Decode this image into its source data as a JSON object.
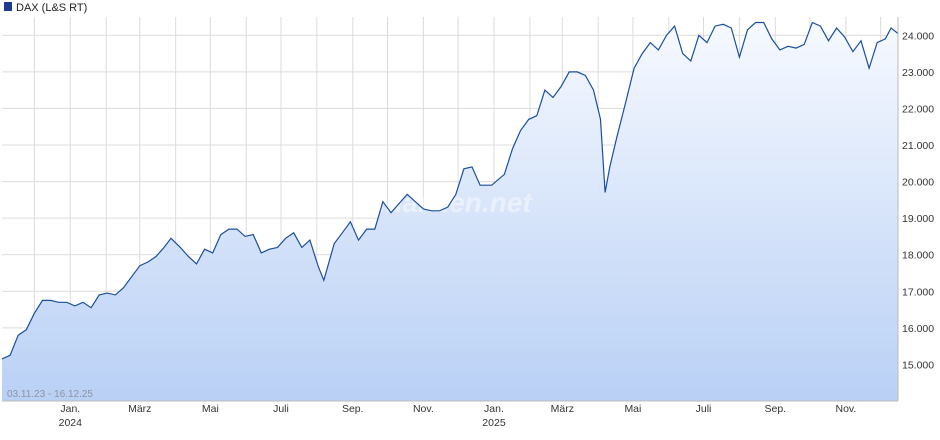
{
  "legend": {
    "label": "DAX (L&S RT)",
    "swatch_color": "#1f3a93"
  },
  "date_range_label": "03.11.23 - 16.12.25",
  "watermark": "finanzen.net",
  "colors": {
    "line": "#1a4fa0",
    "fill_top": "#f6f9ff",
    "fill_bottom": "#b9d0f5",
    "grid": "#dcdcdc",
    "axis_text": "#333333"
  },
  "chart_data": {
    "type": "area",
    "title": "",
    "xlabel": "",
    "ylabel": "",
    "y_axis_position": "right",
    "grid": true,
    "legend_position": "top-left",
    "ylim": [
      14000,
      24500
    ],
    "y_ticks": [
      "15.000",
      "16.000",
      "17.000",
      "18.000",
      "19.000",
      "20.000",
      "21.000",
      "22.000",
      "23.000",
      "24.000"
    ],
    "x_ticks": [
      {
        "month": "Jan.",
        "year": "2024"
      },
      {
        "month": "März",
        "year": ""
      },
      {
        "month": "Mai",
        "year": ""
      },
      {
        "month": "Juli",
        "year": ""
      },
      {
        "month": "Sep.",
        "year": ""
      },
      {
        "month": "Nov.",
        "year": ""
      },
      {
        "month": "Jan.",
        "year": "2025"
      },
      {
        "month": "März",
        "year": ""
      },
      {
        "month": "Mai",
        "year": ""
      },
      {
        "month": "Juli",
        "year": ""
      },
      {
        "month": "Sep.",
        "year": ""
      },
      {
        "month": "Nov.",
        "year": ""
      }
    ],
    "series": [
      {
        "name": "DAX (L&S RT)",
        "points": [
          [
            "2023-11-03",
            15150
          ],
          [
            "2023-11-10",
            15250
          ],
          [
            "2023-11-17",
            15800
          ],
          [
            "2023-11-24",
            15950
          ],
          [
            "2023-12-01",
            16400
          ],
          [
            "2023-12-08",
            16750
          ],
          [
            "2023-12-15",
            16750
          ],
          [
            "2023-12-22",
            16700
          ],
          [
            "2023-12-29",
            16700
          ],
          [
            "2024-01-05",
            16600
          ],
          [
            "2024-01-12",
            16700
          ],
          [
            "2024-01-19",
            16550
          ],
          [
            "2024-01-26",
            16900
          ],
          [
            "2024-02-02",
            16950
          ],
          [
            "2024-02-09",
            16900
          ],
          [
            "2024-02-16",
            17100
          ],
          [
            "2024-02-23",
            17400
          ],
          [
            "2024-03-01",
            17700
          ],
          [
            "2024-03-08",
            17800
          ],
          [
            "2024-03-15",
            17950
          ],
          [
            "2024-03-22",
            18200
          ],
          [
            "2024-03-28",
            18450
          ],
          [
            "2024-04-05",
            18200
          ],
          [
            "2024-04-12",
            17950
          ],
          [
            "2024-04-19",
            17750
          ],
          [
            "2024-04-26",
            18150
          ],
          [
            "2024-05-03",
            18050
          ],
          [
            "2024-05-10",
            18550
          ],
          [
            "2024-05-17",
            18700
          ],
          [
            "2024-05-24",
            18700
          ],
          [
            "2024-05-31",
            18500
          ],
          [
            "2024-06-07",
            18550
          ],
          [
            "2024-06-14",
            18050
          ],
          [
            "2024-06-21",
            18150
          ],
          [
            "2024-06-28",
            18200
          ],
          [
            "2024-07-05",
            18450
          ],
          [
            "2024-07-12",
            18600
          ],
          [
            "2024-07-19",
            18200
          ],
          [
            "2024-07-26",
            18400
          ],
          [
            "2024-08-02",
            17700
          ],
          [
            "2024-08-07",
            17300
          ],
          [
            "2024-08-16",
            18300
          ],
          [
            "2024-08-23",
            18600
          ],
          [
            "2024-08-30",
            18900
          ],
          [
            "2024-09-06",
            18400
          ],
          [
            "2024-09-13",
            18700
          ],
          [
            "2024-09-20",
            18700
          ],
          [
            "2024-09-27",
            19450
          ],
          [
            "2024-10-04",
            19150
          ],
          [
            "2024-10-11",
            19400
          ],
          [
            "2024-10-18",
            19650
          ],
          [
            "2024-10-25",
            19450
          ],
          [
            "2024-11-01",
            19250
          ],
          [
            "2024-11-08",
            19200
          ],
          [
            "2024-11-15",
            19200
          ],
          [
            "2024-11-22",
            19300
          ],
          [
            "2024-11-29",
            19650
          ],
          [
            "2024-12-06",
            20350
          ],
          [
            "2024-12-13",
            20400
          ],
          [
            "2024-12-20",
            19900
          ],
          [
            "2024-12-30",
            19900
          ],
          [
            "2025-01-10",
            20200
          ],
          [
            "2025-01-17",
            20900
          ],
          [
            "2025-01-24",
            21400
          ],
          [
            "2025-01-31",
            21700
          ],
          [
            "2025-02-07",
            21800
          ],
          [
            "2025-02-14",
            22500
          ],
          [
            "2025-02-21",
            22300
          ],
          [
            "2025-02-28",
            22600
          ],
          [
            "2025-03-07",
            23000
          ],
          [
            "2025-03-14",
            23000
          ],
          [
            "2025-03-21",
            22900
          ],
          [
            "2025-03-28",
            22500
          ],
          [
            "2025-04-03",
            21700
          ],
          [
            "2025-04-07",
            19700
          ],
          [
            "2025-04-11",
            20400
          ],
          [
            "2025-04-17",
            21200
          ],
          [
            "2025-04-25",
            22200
          ],
          [
            "2025-05-02",
            23100
          ],
          [
            "2025-05-09",
            23500
          ],
          [
            "2025-05-16",
            23800
          ],
          [
            "2025-05-23",
            23600
          ],
          [
            "2025-05-30",
            24000
          ],
          [
            "2025-06-06",
            24250
          ],
          [
            "2025-06-13",
            23500
          ],
          [
            "2025-06-20",
            23300
          ],
          [
            "2025-06-27",
            24000
          ],
          [
            "2025-07-04",
            23800
          ],
          [
            "2025-07-11",
            24250
          ],
          [
            "2025-07-18",
            24300
          ],
          [
            "2025-07-25",
            24200
          ],
          [
            "2025-08-01",
            23400
          ],
          [
            "2025-08-08",
            24150
          ],
          [
            "2025-08-15",
            24350
          ],
          [
            "2025-08-22",
            24350
          ],
          [
            "2025-08-29",
            23900
          ],
          [
            "2025-09-05",
            23600
          ],
          [
            "2025-09-12",
            23700
          ],
          [
            "2025-09-19",
            23650
          ],
          [
            "2025-09-26",
            23750
          ],
          [
            "2025-10-03",
            24350
          ],
          [
            "2025-10-10",
            24250
          ],
          [
            "2025-10-17",
            23850
          ],
          [
            "2025-10-24",
            24200
          ],
          [
            "2025-10-31",
            23950
          ],
          [
            "2025-11-07",
            23550
          ],
          [
            "2025-11-14",
            23850
          ],
          [
            "2025-11-21",
            23100
          ],
          [
            "2025-11-28",
            23800
          ],
          [
            "2025-12-05",
            23900
          ],
          [
            "2025-12-10",
            24200
          ],
          [
            "2025-12-16",
            24050
          ]
        ]
      }
    ]
  }
}
